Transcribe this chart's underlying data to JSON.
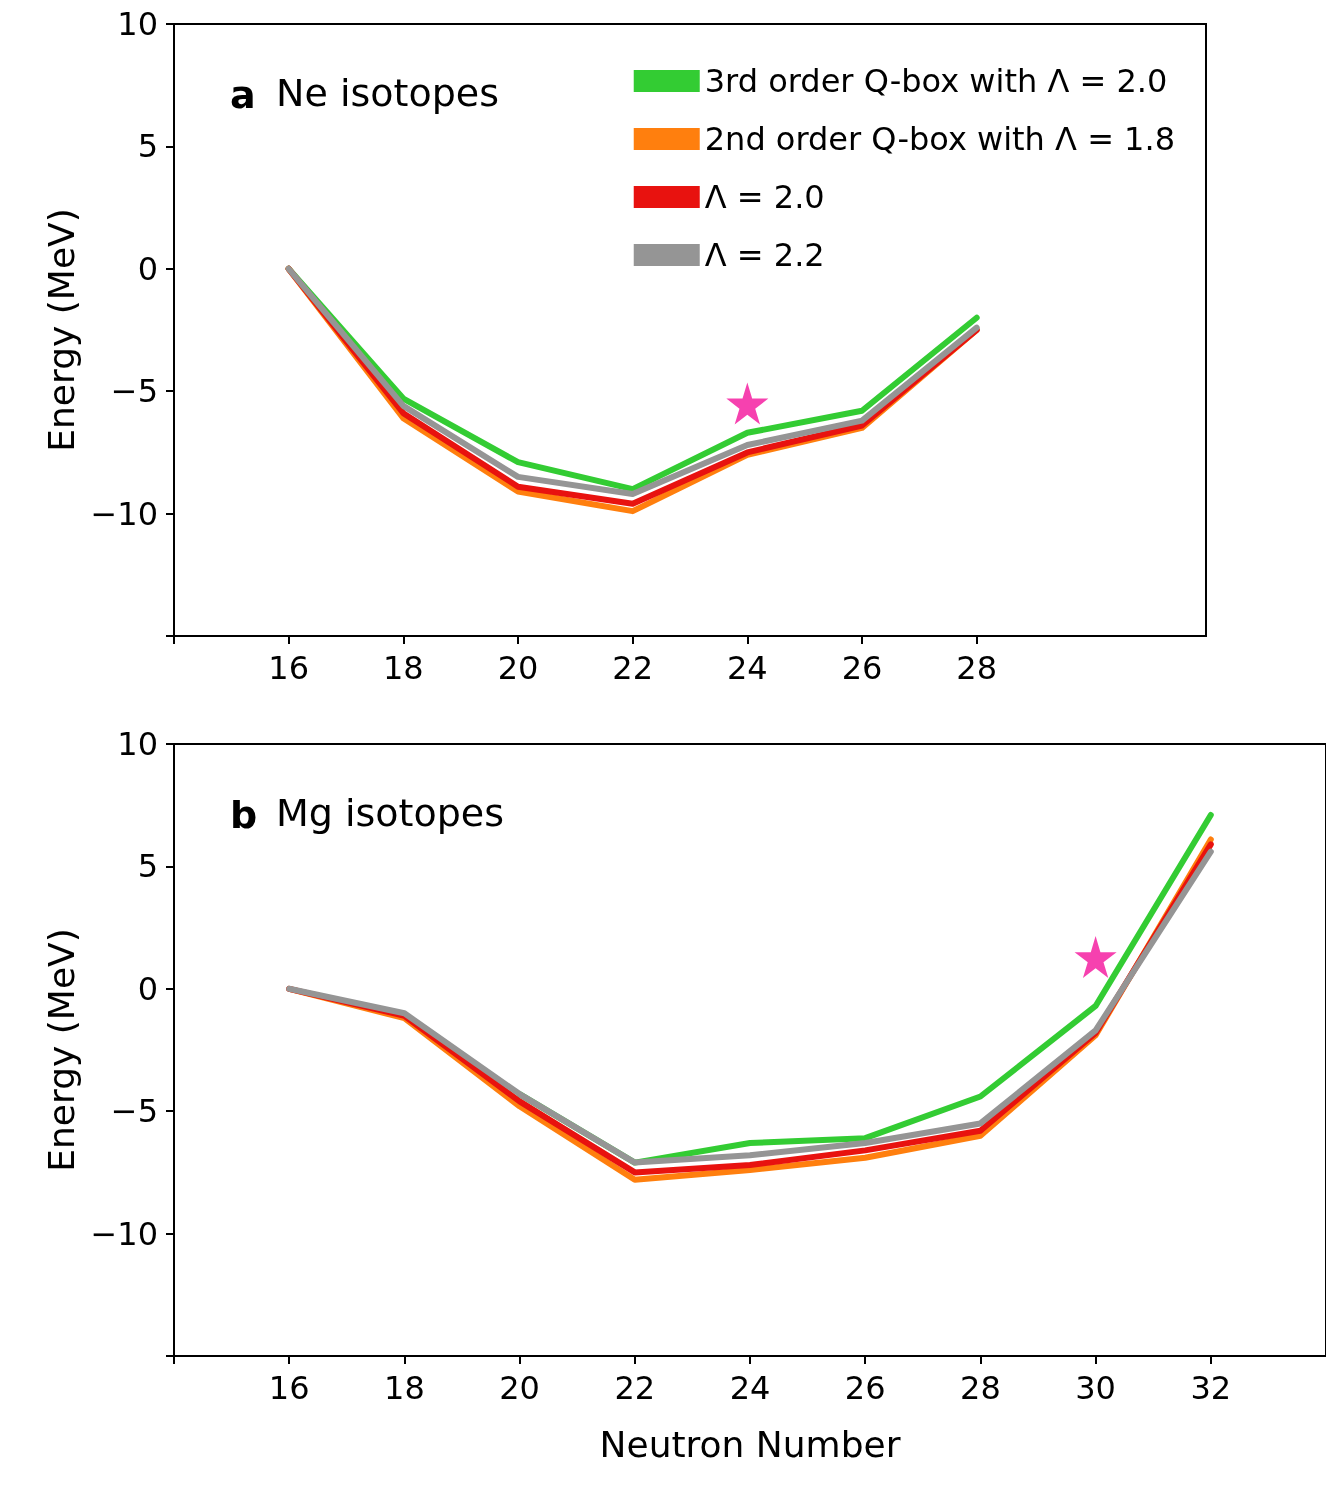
{
  "chart_data": [
    {
      "type": "line",
      "title": "a",
      "subtitle": "Ne isotopes",
      "ylabel": "Energy (MeV)",
      "x": [
        16,
        18,
        20,
        22,
        24,
        26,
        28
      ],
      "xlim": [
        14,
        32
      ],
      "xticks": [
        {
          "value": 14,
          "label": null
        },
        16,
        18,
        20,
        22,
        24,
        26,
        28
      ],
      "ylim": [
        -15,
        10
      ],
      "yticks": [
        {
          "value": -15,
          "label": null
        },
        {
          "value": -10,
          "label": "−10"
        },
        {
          "value": -5,
          "label": "−5"
        },
        0,
        5,
        10
      ],
      "legend": "top right",
      "marker": "none",
      "line_style": "solid",
      "grid": false,
      "series": [
        {
          "name": "3rd order Q-box with Λ = 2.0",
          "color": "#33cc33",
          "values": [
            0,
            -5.3,
            -7.9,
            -9.0,
            -6.7,
            -5.8,
            -2.0
          ]
        },
        {
          "name": "2nd order Q-box with Λ = 1.8",
          "color": "#ff7f0e",
          "values": [
            0,
            -6.1,
            -9.1,
            -9.9,
            -7.6,
            -6.5,
            -2.5
          ]
        },
        {
          "name": "Λ = 2.0",
          "color": "#e8120f",
          "values": [
            0,
            -5.9,
            -8.9,
            -9.6,
            -7.5,
            -6.4,
            -2.5
          ]
        },
        {
          "name": "Λ = 2.2",
          "color": "#959595",
          "values": [
            0,
            -5.6,
            -8.5,
            -9.2,
            -7.2,
            -6.2,
            -2.4
          ]
        },
        {
          "type": "scatter",
          "marker": "star",
          "color": "#f4129b",
          "x": [
            24
          ],
          "values": [
            -5.5
          ]
        }
      ]
    },
    {
      "type": "line",
      "title": "b",
      "subtitle": "Mg isotopes",
      "ylabel": "Energy (MeV)",
      "xlabel": "Neutron Number",
      "x": [
        16,
        18,
        20,
        22,
        24,
        26,
        28,
        30,
        32
      ],
      "xlim": [
        14,
        34
      ],
      "xticks": [
        {
          "value": 14,
          "label": null
        },
        16,
        18,
        20,
        22,
        24,
        26,
        28,
        30,
        32
      ],
      "ylim": [
        -15,
        10
      ],
      "yticks": [
        {
          "value": -15,
          "label": null
        },
        {
          "value": -10,
          "label": "−10"
        },
        {
          "value": -5,
          "label": "−5"
        },
        0,
        5,
        10
      ],
      "marker": "none",
      "line_style": "solid",
      "grid": false,
      "series": [
        {
          "color": "#33cc33",
          "values": [
            null,
            null,
            -4.3,
            -7.1,
            -6.3,
            -6.1,
            -4.4,
            -0.7,
            7.1
          ]
        },
        {
          "color": "#ff7f0e",
          "values": [
            0,
            -1.2,
            -4.8,
            -7.8,
            -7.4,
            -6.9,
            -6.0,
            -1.9,
            6.1
          ]
        },
        {
          "color": "#e8120f",
          "values": [
            0,
            -1.1,
            -4.6,
            -7.5,
            -7.2,
            -6.6,
            -5.8,
            -1.8,
            5.9
          ]
        },
        {
          "color": "#959595",
          "values": [
            0,
            -1.0,
            -4.3,
            -7.1,
            -6.8,
            -6.3,
            -5.5,
            -1.7,
            5.6
          ]
        },
        {
          "type": "scatter",
          "marker": "star",
          "color": "#f4129b",
          "x": [
            30
          ],
          "values": [
            1.3
          ]
        }
      ]
    }
  ]
}
